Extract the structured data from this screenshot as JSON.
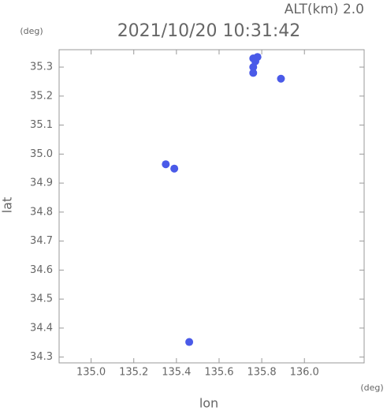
{
  "chart_data": {
    "type": "scatter",
    "title": "2021/10/20 10:31:42",
    "altitude_label": "ALT(km) 2.0",
    "y_unit": "(deg)",
    "x_unit": "(deg)",
    "x_label": "lon",
    "y_label": "lat",
    "x": [
      135.76,
      135.77,
      135.76,
      135.76,
      135.78,
      135.89,
      135.35,
      135.39,
      135.46
    ],
    "y": [
      35.33,
      35.32,
      35.3,
      35.28,
      35.335,
      35.26,
      34.965,
      34.95,
      34.352
    ],
    "color": "#4a5ae8",
    "xlim": [
      134.85,
      136.28
    ],
    "ylim": [
      34.28,
      35.36
    ],
    "xticks": [
      {
        "value": 135,
        "label": "135.0"
      },
      135.2,
      135.4,
      135.6,
      135.8,
      {
        "value": 136,
        "label": "136.0"
      }
    ],
    "yticks": [
      34.3,
      34.4,
      34.5,
      34.6,
      34.7,
      34.8,
      34.9,
      {
        "value": 35,
        "label": "35.0"
      },
      35.1,
      35.2,
      35.3
    ],
    "grid": false
  }
}
